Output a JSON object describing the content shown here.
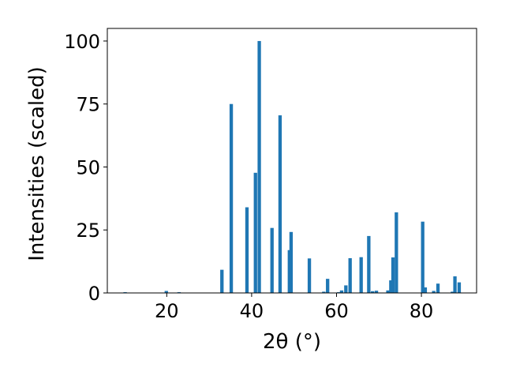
{
  "chart_data": {
    "type": "bar",
    "xlabel": "2θ (°)",
    "ylabel": "Intensities (scaled)",
    "xlim": [
      6,
      93
    ],
    "ylim": [
      0,
      105
    ],
    "xticks": [
      20,
      40,
      60,
      80
    ],
    "yticks": [
      0,
      25,
      50,
      75,
      100
    ],
    "grid": false,
    "bar_color": "#1f77b4",
    "bar_width": 0.8,
    "x": [
      10.2,
      19.9,
      22.9,
      33.0,
      35.2,
      38.9,
      40.9,
      41.8,
      44.8,
      46.7,
      48.9,
      49.3,
      53.6,
      57.0,
      57.9,
      60.5,
      61.2,
      62.2,
      63.2,
      65.8,
      67.6,
      68.5,
      69.4,
      72.1,
      72.8,
      73.3,
      74.1,
      80.3,
      80.9,
      82.9,
      83.9,
      87.3,
      87.9,
      88.9
    ],
    "values": [
      0.3,
      0.8,
      0.3,
      9.2,
      75.0,
      34.0,
      47.7,
      100.0,
      25.8,
      70.5,
      17.0,
      24.2,
      13.7,
      0.5,
      5.6,
      0.3,
      1.0,
      3.0,
      13.8,
      14.2,
      22.6,
      0.7,
      0.9,
      1.0,
      5.0,
      14.1,
      32.0,
      28.3,
      2.2,
      0.8,
      3.7,
      0.5,
      6.6,
      4.2
    ]
  }
}
